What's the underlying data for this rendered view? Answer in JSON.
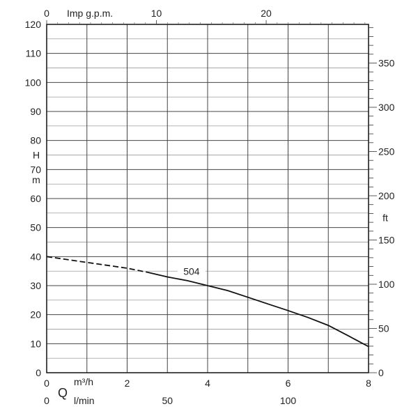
{
  "chart_data": {
    "type": "line",
    "title": "",
    "grid": true,
    "left_axis": {
      "label_letter": "H",
      "label_unit": "m",
      "ylim": [
        0,
        120
      ],
      "ticks": [
        0,
        10,
        20,
        30,
        40,
        50,
        60,
        70,
        80,
        90,
        100,
        110,
        120
      ]
    },
    "right_axis": {
      "label": "ft",
      "ylim": [
        0,
        393.7
      ],
      "ticks": [
        0,
        50,
        100,
        150,
        200,
        250,
        300,
        350
      ]
    },
    "top_axis": {
      "label": "Imp g.p.m.",
      "ticks": [
        0,
        10,
        20
      ]
    },
    "bottom_axis": {
      "label_letter": "Q",
      "unit_primary": "m³/h",
      "unit_secondary": "l/min",
      "xlim": [
        0,
        8
      ],
      "ticks": [
        0,
        2,
        4,
        6,
        8
      ],
      "secondary_ticks": [
        0,
        50,
        100
      ]
    },
    "series": [
      {
        "name": "504",
        "x": [
          0,
          0.5,
          1,
          1.5,
          2,
          2.5,
          3,
          3.5,
          4,
          4.5,
          5,
          5.5,
          6,
          6.5,
          7,
          7.5,
          8
        ],
        "y": [
          40,
          39,
          38,
          37,
          36,
          34.6,
          33,
          31.7,
          30,
          28.3,
          26,
          23.7,
          21.4,
          19,
          16.3,
          12.7,
          9
        ],
        "dashed_until_x": 2.5
      }
    ]
  }
}
